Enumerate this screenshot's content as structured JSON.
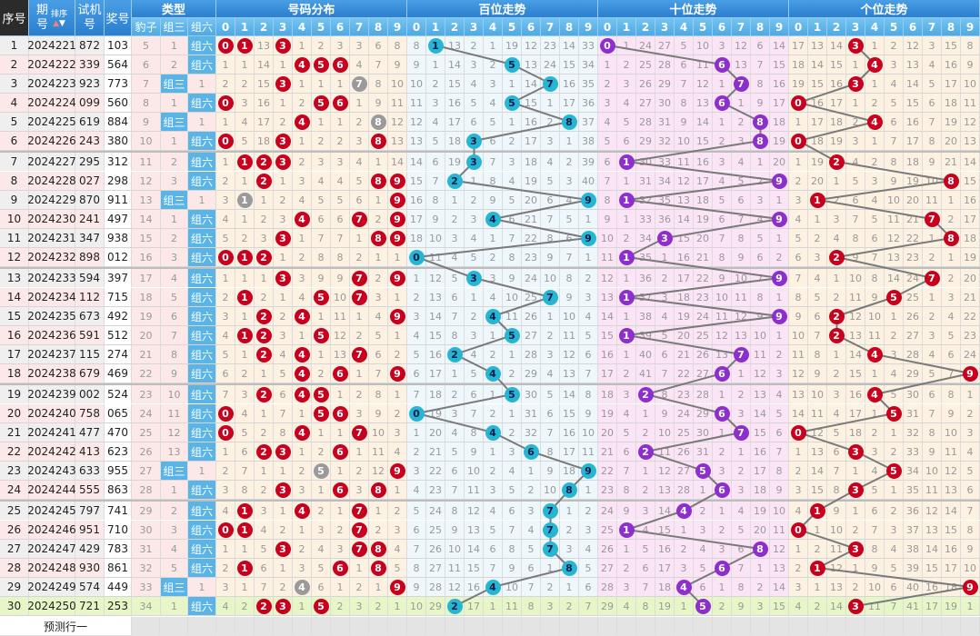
{
  "header": {
    "seq": "序号",
    "issue_top": "期",
    "issue_bottom": "号",
    "sort": "排序",
    "trial_top": "试机",
    "trial_bottom": "号",
    "prize": "奖号",
    "type": "类型",
    "type_cols": [
      "豹子",
      "组三",
      "组六"
    ],
    "dist": "号码分布",
    "hundreds": "百位走势",
    "tens": "十位走势",
    "units": "个位走势",
    "digits": [
      "0",
      "1",
      "2",
      "3",
      "4",
      "5",
      "6",
      "7",
      "8",
      "9"
    ]
  },
  "rows": [
    [
      "1",
      "2024221",
      "872",
      "103"
    ],
    [
      "2",
      "2024222",
      "339",
      "564"
    ],
    [
      "3",
      "2024223",
      "923",
      "773"
    ],
    [
      "4",
      "2024224",
      "099",
      "560"
    ],
    [
      "5",
      "2024225",
      "619",
      "884"
    ],
    [
      "6",
      "2024226",
      "243",
      "380"
    ],
    [
      "7",
      "2024227",
      "295",
      "312"
    ],
    [
      "8",
      "2024228",
      "027",
      "298"
    ],
    [
      "9",
      "2024229",
      "870",
      "911"
    ],
    [
      "10",
      "2024230",
      "241",
      "497"
    ],
    [
      "11",
      "2024231",
      "347",
      "938"
    ],
    [
      "12",
      "2024232",
      "898",
      "012"
    ],
    [
      "13",
      "2024233",
      "594",
      "397"
    ],
    [
      "14",
      "2024234",
      "112",
      "715"
    ],
    [
      "15",
      "2024235",
      "673",
      "492"
    ],
    [
      "16",
      "2024236",
      "591",
      "512"
    ],
    [
      "17",
      "2024237",
      "115",
      "274"
    ],
    [
      "18",
      "2024238",
      "679",
      "469"
    ],
    [
      "19",
      "2024239",
      "002",
      "524"
    ],
    [
      "20",
      "2024240",
      "758",
      "065"
    ],
    [
      "21",
      "2024241",
      "477",
      "470"
    ],
    [
      "22",
      "2024242",
      "413",
      "623"
    ],
    [
      "23",
      "2024243",
      "633",
      "955"
    ],
    [
      "24",
      "2024244",
      "555",
      "863"
    ],
    [
      "25",
      "2024245",
      "797",
      "741"
    ],
    [
      "26",
      "2024246",
      "951",
      "710"
    ],
    [
      "27",
      "2024247",
      "429",
      "783"
    ],
    [
      "28",
      "2024248",
      "930",
      "861"
    ],
    [
      "29",
      "2024249",
      "574",
      "449"
    ],
    [
      "30",
      "2024250",
      "721",
      "253"
    ]
  ],
  "first_row_miss": {
    "type": [
      5,
      1,
      0
    ],
    "dist": [
      0,
      0,
      13,
      0,
      1,
      2,
      3,
      3,
      6,
      8
    ],
    "hundreds": [
      8,
      0,
      13,
      2,
      1,
      19,
      12,
      23,
      14,
      33
    ],
    "tens": [
      0,
      1,
      24,
      27,
      5,
      10,
      3,
      12,
      6,
      14
    ],
    "units": [
      17,
      13,
      14,
      0,
      1,
      2,
      12,
      3,
      15,
      8
    ]
  },
  "footer": {
    "label": "预测行一"
  },
  "colors": {
    "red_ball": "#c8001e",
    "gray_ball": "#9a9a9a",
    "teal_ball": "#26b6d4",
    "purple_ball": "#8c2fcc",
    "type_hit": "#5ab4e6",
    "current_row": "#e6f6c6"
  }
}
